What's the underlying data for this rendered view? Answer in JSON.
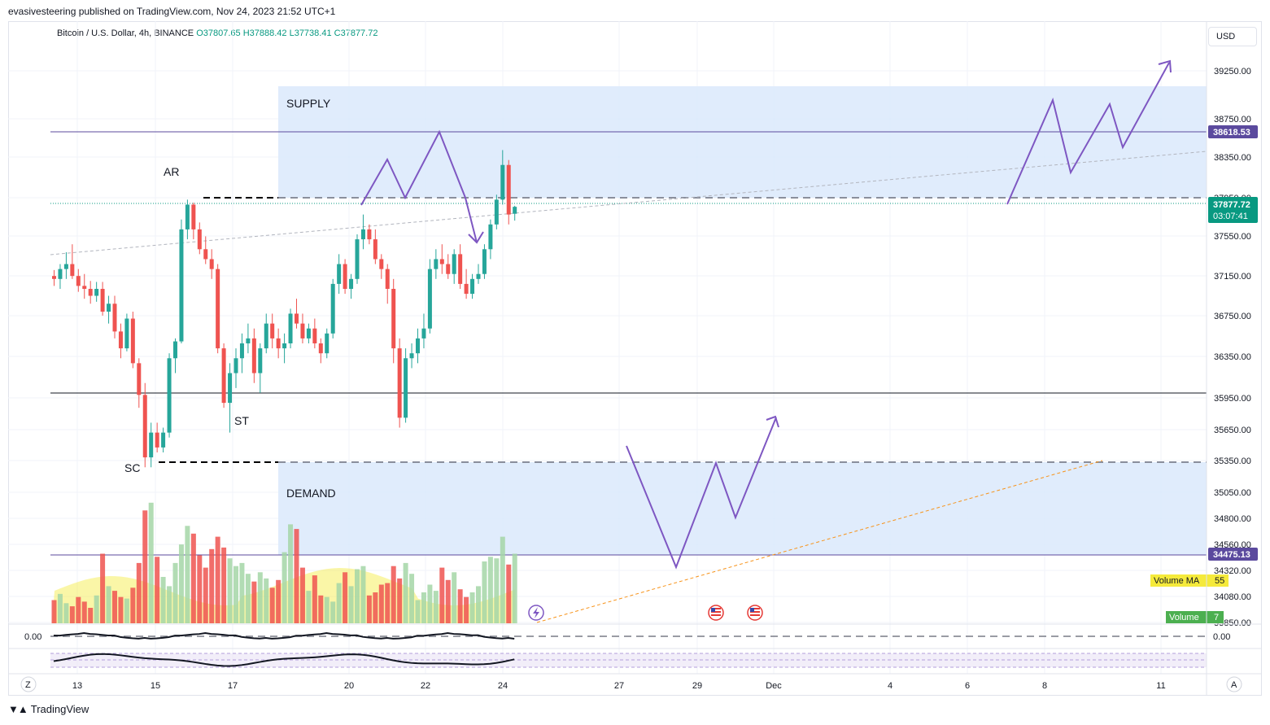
{
  "header": {
    "text": "evasivesteering published on TradingView.com, Nov 24, 2023 21:52 UTC+1"
  },
  "legend": {
    "symbol": "Bitcoin / U.S. Dollar, 4h, BINANCE",
    "open": "O37807.65",
    "high": "H37888.42",
    "low": "L37738.41",
    "close": "C37877.72"
  },
  "currency_button": "USD",
  "price_axis": {
    "ticks": [
      "39250.00",
      "38750.00",
      "38350.00",
      "37950.00",
      "37550.00",
      "37150.00",
      "36750.00",
      "36350.00",
      "35950.00",
      "35650.00",
      "35350.00",
      "35050.00",
      "34800.00",
      "34560.00",
      "34320.00",
      "34080.00",
      "33850.00"
    ],
    "labels": {
      "level_high": "38618.53",
      "last_price": "37877.72",
      "countdown": "03:07:41",
      "level_low": "34475.13"
    }
  },
  "time_axis": {
    "labels": [
      "13",
      "15",
      "17",
      "20",
      "22",
      "24",
      "27",
      "29",
      "Dec",
      "4",
      "6",
      "8",
      "11"
    ]
  },
  "annotations": {
    "supply": "SUPPLY",
    "demand": "DEMAND",
    "ar": "AR",
    "st": "ST",
    "sc": "SC"
  },
  "volume_badges": {
    "ma_label": "Volume MA",
    "ma_value": "55",
    "vol_label": "Volume",
    "vol_value": "7"
  },
  "indicator": {
    "zero_left": "0.00",
    "zero_right": "0.00"
  },
  "corner_buttons": {
    "left": "Z",
    "right": "A"
  },
  "footer": {
    "brand": "TradingView"
  },
  "colors": {
    "up": "#26a69a",
    "down": "#ef5350",
    "zone": "#deebfb",
    "pattern": "#7e57c2",
    "level_line": "#5b4a9e",
    "trend_dotted": "#f7931a"
  },
  "chart_data": {
    "type": "candlestick",
    "timeframe": "4h",
    "y_range": [
      33850,
      39450
    ],
    "levels": {
      "supply_top": 39050,
      "supply_bottom": 37950,
      "demand_top": 35350,
      "demand_bottom": 34475.13,
      "resistance": 38618.53,
      "support": 35950,
      "last": 37877.72
    },
    "candles": [
      [
        37180,
        37240,
        37080,
        37150
      ],
      [
        37150,
        37300,
        37050,
        37250
      ],
      [
        37250,
        37420,
        37150,
        37300
      ],
      [
        37300,
        37500,
        37150,
        37180
      ],
      [
        37180,
        37250,
        37020,
        37080
      ],
      [
        37080,
        37200,
        36950,
        37050
      ],
      [
        37050,
        37130,
        36900,
        36980
      ],
      [
        36980,
        37120,
        36920,
        37050
      ],
      [
        37050,
        37120,
        36780,
        36820
      ],
      [
        36820,
        36980,
        36700,
        36900
      ],
      [
        36900,
        36980,
        36550,
        36620
      ],
      [
        36620,
        36700,
        36350,
        36450
      ],
      [
        36450,
        36800,
        36420,
        36750
      ],
      [
        36750,
        36820,
        36250,
        36300
      ],
      [
        36300,
        36350,
        35850,
        35980
      ],
      [
        35980,
        36100,
        35250,
        35350
      ],
      [
        35350,
        35700,
        35250,
        35600
      ],
      [
        35600,
        35700,
        35400,
        35450
      ],
      [
        35450,
        35650,
        35400,
        35600
      ],
      [
        35600,
        36400,
        35550,
        36350
      ],
      [
        36350,
        36550,
        36200,
        36520
      ],
      [
        36520,
        37750,
        36500,
        37650
      ],
      [
        37650,
        37950,
        37550,
        37900
      ],
      [
        37900,
        37920,
        37550,
        37650
      ],
      [
        37650,
        37720,
        37400,
        37450
      ],
      [
        37450,
        37580,
        37300,
        37350
      ],
      [
        37350,
        37450,
        37150,
        37250
      ],
      [
        37250,
        37300,
        36400,
        36450
      ],
      [
        36450,
        36500,
        35850,
        35900
      ],
      [
        35900,
        36300,
        35600,
        36200
      ],
      [
        36200,
        36450,
        36050,
        36350
      ],
      [
        36350,
        36600,
        36200,
        36500
      ],
      [
        36500,
        36700,
        36400,
        36550
      ],
      [
        36550,
        36650,
        36100,
        36200
      ],
      [
        36200,
        36500,
        36000,
        36450
      ],
      [
        36450,
        36800,
        36400,
        36700
      ],
      [
        36700,
        36800,
        36450,
        36550
      ],
      [
        36550,
        36650,
        36350,
        36450
      ],
      [
        36450,
        36600,
        36300,
        36500
      ],
      [
        36500,
        36850,
        36450,
        36800
      ],
      [
        36800,
        36950,
        36650,
        36700
      ],
      [
        36700,
        36800,
        36500,
        36550
      ],
      [
        36550,
        36700,
        36500,
        36650
      ],
      [
        36650,
        36750,
        36450,
        36500
      ],
      [
        36500,
        36550,
        36300,
        36400
      ],
      [
        36400,
        36650,
        36350,
        36600
      ],
      [
        36600,
        37150,
        36550,
        37100
      ],
      [
        37100,
        37400,
        37000,
        37300
      ],
      [
        37300,
        37350,
        37000,
        37050
      ],
      [
        37050,
        37200,
        36950,
        37150
      ],
      [
        37150,
        37600,
        37100,
        37550
      ],
      [
        37550,
        37800,
        37450,
        37650
      ],
      [
        37650,
        37700,
        37500,
        37550
      ],
      [
        37550,
        37650,
        37300,
        37350
      ],
      [
        37350,
        37400,
        37150,
        37250
      ],
      [
        37250,
        37300,
        36900,
        37050
      ],
      [
        37050,
        37150,
        36300,
        36450
      ],
      [
        36450,
        36550,
        35650,
        35750
      ],
      [
        35750,
        36450,
        35700,
        36350
      ],
      [
        36350,
        36500,
        36250,
        36400
      ],
      [
        36400,
        36650,
        36300,
        36550
      ],
      [
        36550,
        36800,
        36450,
        36650
      ],
      [
        36650,
        37350,
        36600,
        37250
      ],
      [
        37250,
        37450,
        37150,
        37350
      ],
      [
        37350,
        37500,
        37200,
        37300
      ],
      [
        37300,
        37400,
        37150,
        37200
      ],
      [
        37200,
        37450,
        37100,
        37400
      ],
      [
        37400,
        37500,
        37050,
        37100
      ],
      [
        37100,
        37250,
        36950,
        37000
      ],
      [
        37000,
        37200,
        36950,
        37150
      ],
      [
        37150,
        37300,
        37100,
        37200
      ],
      [
        37200,
        37500,
        37150,
        37450
      ],
      [
        37450,
        37750,
        37350,
        37700
      ],
      [
        37700,
        38000,
        37650,
        37950
      ],
      [
        37950,
        38450,
        37900,
        38300
      ],
      [
        38300,
        38350,
        37700,
        37800
      ],
      [
        37807.65,
        37888.42,
        37738.41,
        37877.72
      ]
    ],
    "volume_ma": 55,
    "volume": 7
  }
}
